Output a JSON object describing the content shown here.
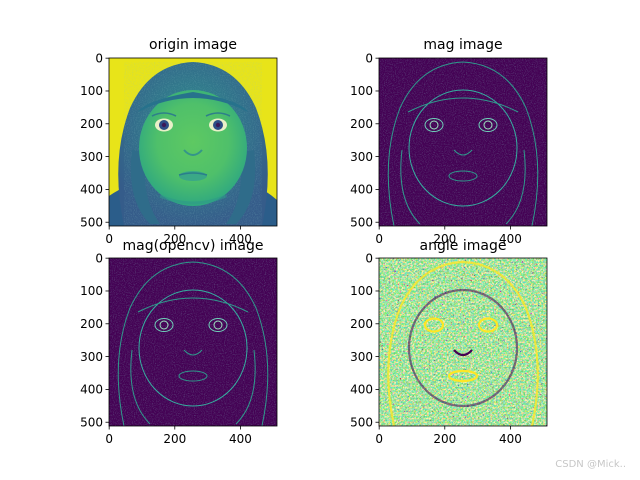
{
  "figure": {
    "panels": [
      {
        "title": "origin image",
        "kind": "origin",
        "xticks": [
          "0",
          "200",
          "400"
        ],
        "yticks": [
          "0",
          "100",
          "200",
          "300",
          "400",
          "500"
        ]
      },
      {
        "title": "mag image",
        "kind": "mag",
        "xticks": [
          "0",
          "200",
          "400"
        ],
        "yticks": [
          "0",
          "100",
          "200",
          "300",
          "400",
          "500"
        ]
      },
      {
        "title": "mag(opencv) image",
        "kind": "mag",
        "xticks": [
          "0",
          "200",
          "400"
        ],
        "yticks": [
          "0",
          "100",
          "200",
          "300",
          "400",
          "500"
        ]
      },
      {
        "title": "angle image",
        "kind": "angle",
        "xticks": [
          "0",
          "200",
          "400"
        ],
        "yticks": [
          "0",
          "100",
          "200",
          "300",
          "400",
          "500"
        ]
      }
    ],
    "colormap": "viridis",
    "colors": {
      "viridis_dark": "#440154",
      "viridis_blue": "#3b528b",
      "viridis_teal": "#21918c",
      "viridis_green": "#5ec962",
      "viridis_yellow": "#fde725"
    }
  },
  "watermark": "CSDN @Mick.."
}
